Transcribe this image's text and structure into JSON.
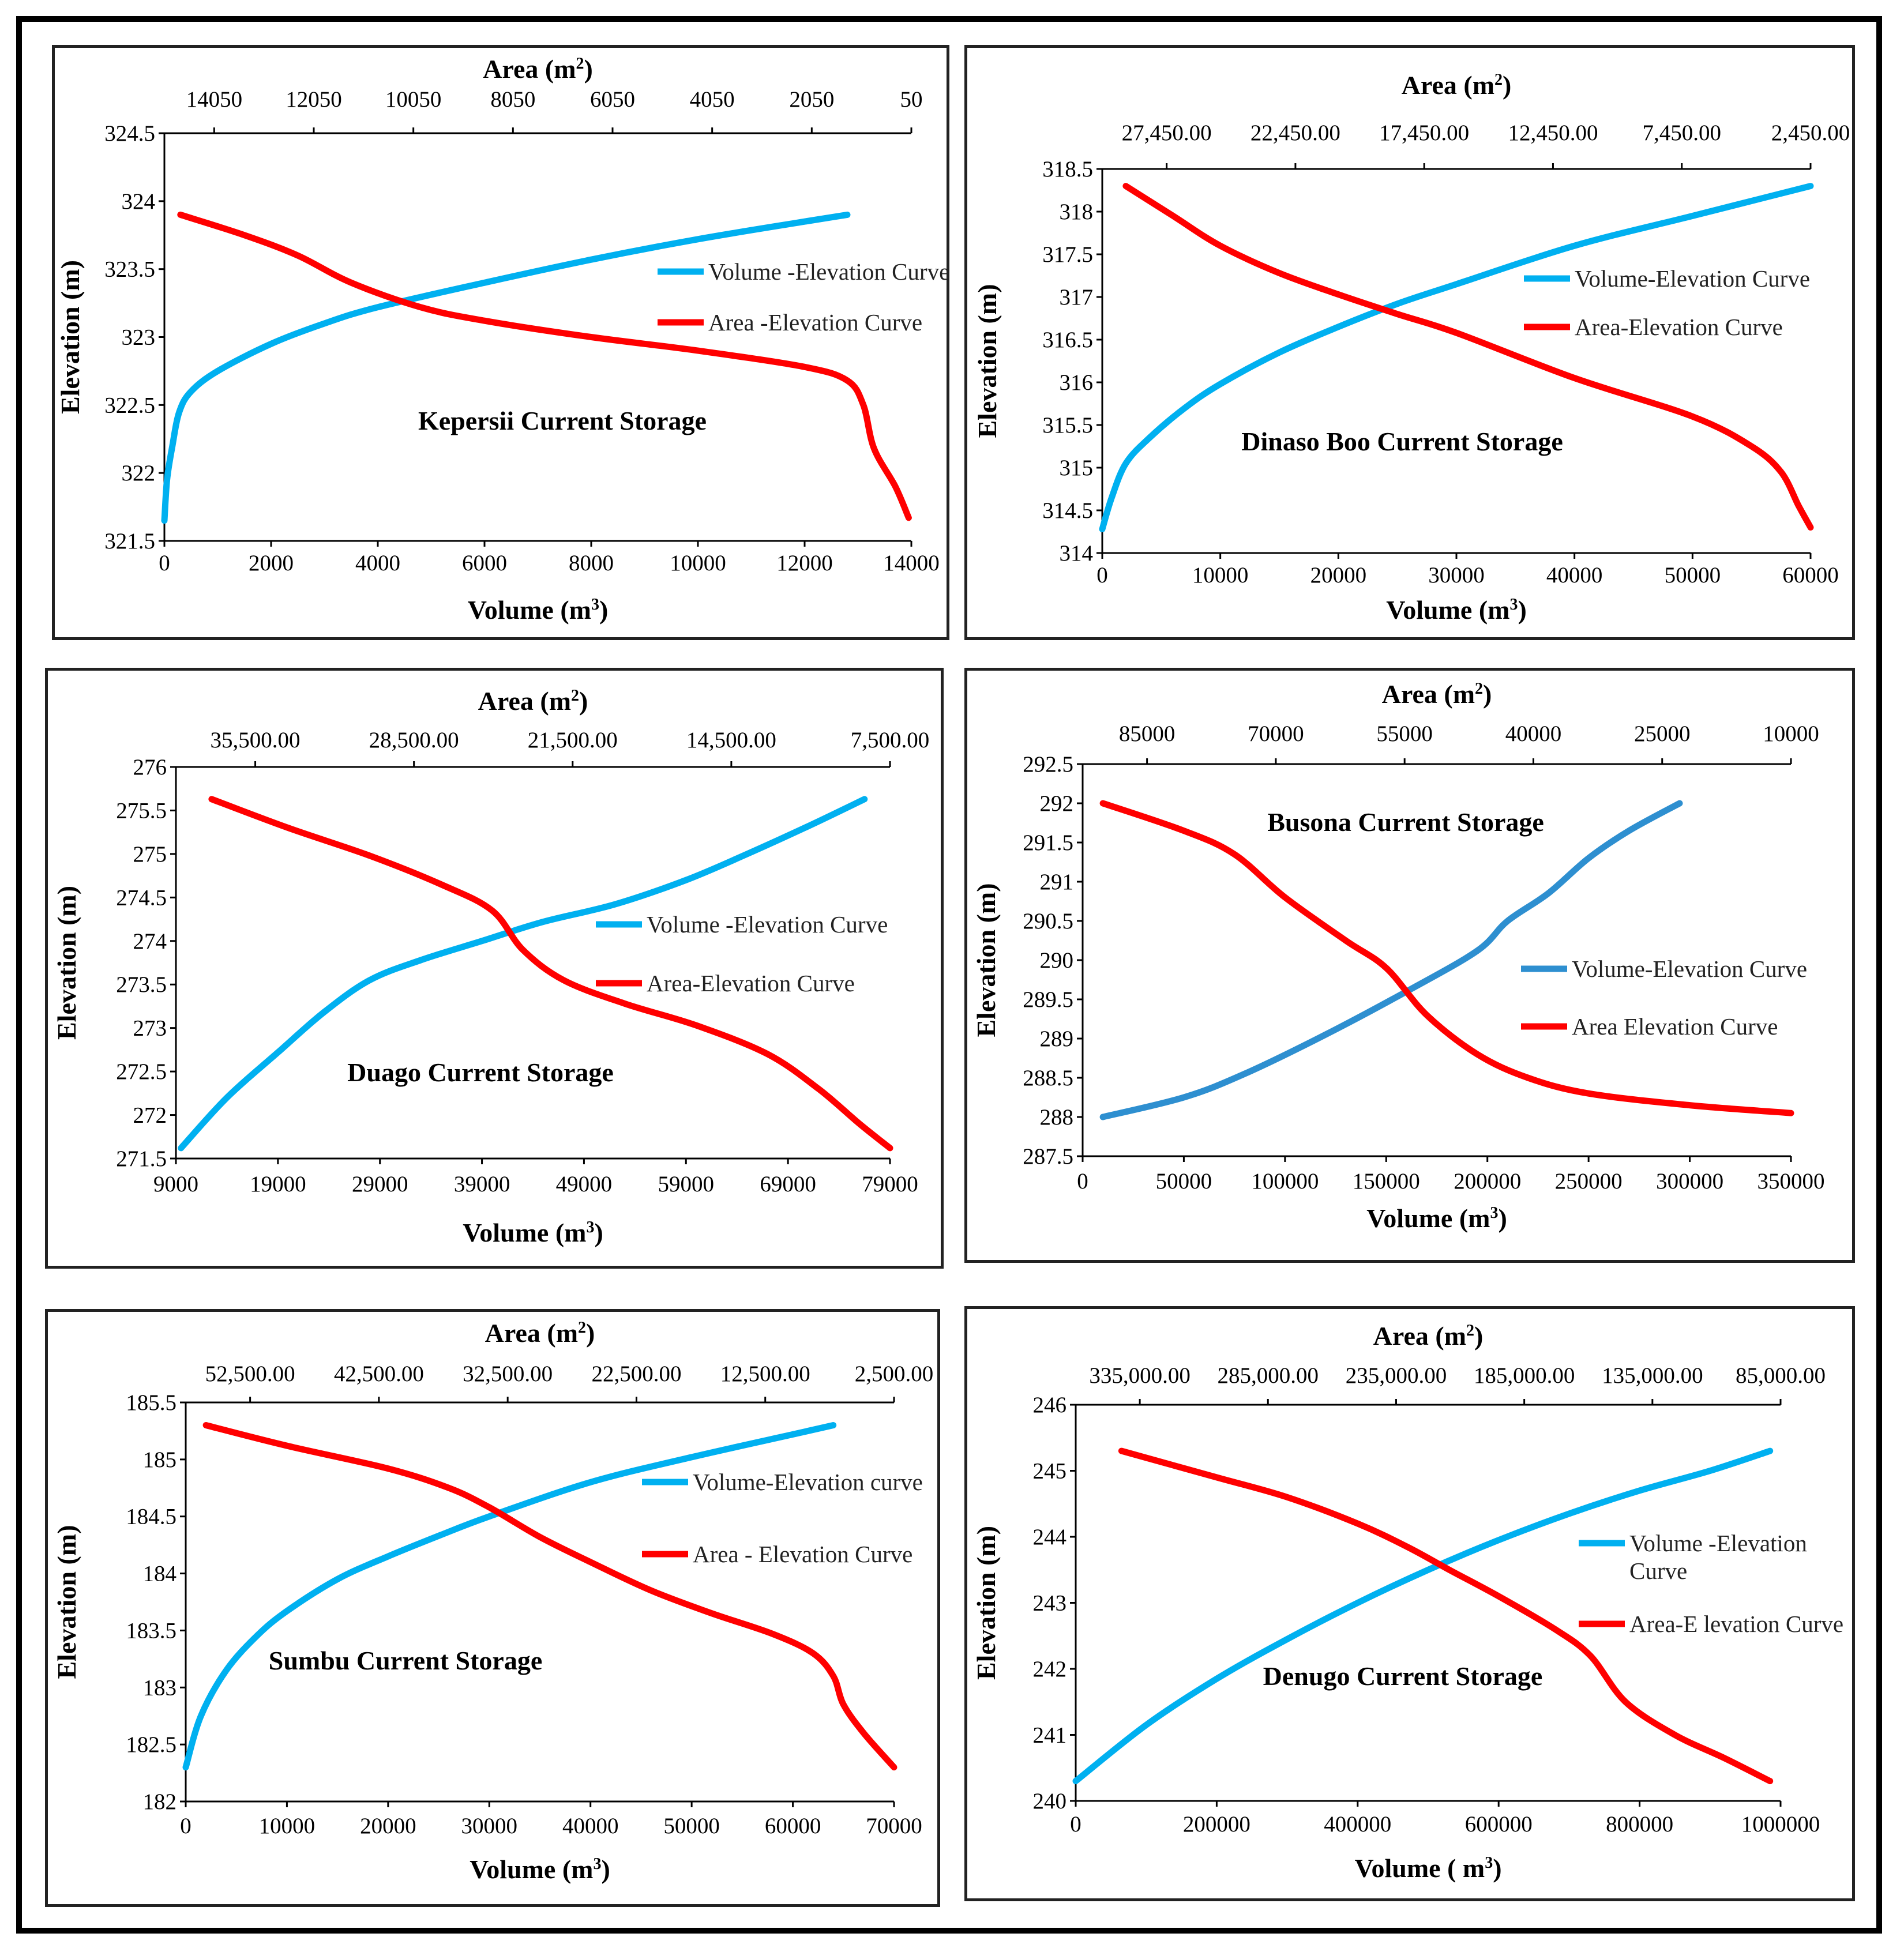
{
  "chart_data": [
    {
      "type": "line",
      "title": "Kepersii Current Storage",
      "xlabel": "Volume (m",
      "x2label": "Area (m",
      "ylabel": "Elevation (m)",
      "xlim": [
        0,
        14000
      ],
      "ylim": [
        321.5,
        324.5
      ],
      "xticks": [
        "0",
        "2000",
        "4000",
        "6000",
        "8000",
        "10000",
        "12000",
        "14000"
      ],
      "x2ticks": [
        "14050",
        "12050",
        "10050",
        "8050",
        "6050",
        "4050",
        "2050",
        "50"
      ],
      "yticks": [
        "321.5",
        "322",
        "322.5",
        "323",
        "323.5",
        "324",
        "324.5"
      ],
      "legend": [
        "Volume -Elevation Curve",
        "Area -Elevation Curve"
      ],
      "series": [
        {
          "name": "Volume -Elevation Curve",
          "color": "#00b0f0",
          "x": [
            0,
            50,
            150,
            280,
            500,
            1000,
            2000,
            3000,
            4000,
            6000,
            8000,
            10000,
            12000,
            12800
          ],
          "y": [
            321.65,
            321.95,
            322.2,
            322.45,
            322.6,
            322.75,
            322.95,
            323.1,
            323.22,
            323.4,
            323.57,
            323.72,
            323.85,
            323.9
          ]
        },
        {
          "name": "Area -Elevation Curve",
          "color": "#ff0000",
          "x": [
            300,
            1500,
            2500,
            3500,
            4800,
            6000,
            8000,
            10000,
            12000,
            12800,
            13100,
            13300,
            13700,
            13950
          ],
          "y": [
            323.9,
            323.75,
            323.6,
            323.4,
            323.22,
            323.12,
            323.0,
            322.9,
            322.78,
            322.68,
            322.5,
            322.18,
            321.9,
            321.67
          ]
        }
      ]
    },
    {
      "type": "line",
      "title": "Dinaso Boo Current Storage",
      "xlabel": "Volume (m",
      "x2label": "Area (m",
      "ylabel": "Elevation (m)",
      "xlim": [
        0,
        60000
      ],
      "ylim": [
        314,
        318.5
      ],
      "xticks": [
        "0",
        "10000",
        "20000",
        "30000",
        "40000",
        "50000",
        "60000"
      ],
      "x2ticks": [
        "27,450.00",
        "22,450.00",
        "17,450.00",
        "12,450.00",
        "7,450.00",
        "2,450.00"
      ],
      "yticks": [
        "314",
        "314.5",
        "315",
        "315.5",
        "316",
        "316.5",
        "317",
        "317.5",
        "318",
        "318.5"
      ],
      "legend": [
        "Volume-Elevation Curve",
        "Area-Elevation Curve"
      ],
      "series": [
        {
          "name": "Volume-Elevation Curve",
          "color": "#00b0f0",
          "x": [
            0,
            800,
            2000,
            4000,
            7000,
            10000,
            15000,
            20000,
            25000,
            30000,
            40000,
            50000,
            60000
          ],
          "y": [
            314.28,
            314.65,
            315.05,
            315.35,
            315.7,
            315.98,
            316.35,
            316.65,
            316.92,
            317.15,
            317.6,
            317.95,
            318.3
          ]
        },
        {
          "name": "Area-Elevation Curve",
          "color": "#ff0000",
          "x": [
            2000,
            6000,
            10000,
            15000,
            20000,
            25000,
            30000,
            40000,
            50000,
            55000,
            57500,
            59000,
            60000
          ],
          "y": [
            318.3,
            317.95,
            317.6,
            317.28,
            317.03,
            316.8,
            316.58,
            316.05,
            315.6,
            315.25,
            314.95,
            314.55,
            314.3
          ]
        }
      ]
    },
    {
      "type": "line",
      "title": "Duago Current Storage",
      "xlabel": "Volume (m",
      "x2label": "Area (m",
      "ylabel": "Elevation (m)",
      "xlim": [
        9000,
        79000
      ],
      "ylim": [
        271.5,
        276
      ],
      "xticks": [
        "9000",
        "19000",
        "29000",
        "39000",
        "49000",
        "59000",
        "69000",
        "79000"
      ],
      "x2ticks": [
        "35,500.00",
        "28,500.00",
        "21,500.00",
        "14,500.00",
        "7,500.00"
      ],
      "yticks": [
        "271.5",
        "272",
        "272.5",
        "273",
        "273.5",
        "274",
        "274.5",
        "275",
        "275.5",
        "276"
      ],
      "legend": [
        "Volume -Elevation Curve",
        "Area-Elevation Curve"
      ],
      "series": [
        {
          "name": "Volume -Elevation Curve",
          "color": "#00b0f0",
          "x": [
            9500,
            14000,
            19000,
            23500,
            28000,
            33000,
            39000,
            45000,
            52000,
            59000,
            65000,
            71000,
            76500
          ],
          "y": [
            271.62,
            272.2,
            272.72,
            273.18,
            273.55,
            273.78,
            274.0,
            274.22,
            274.42,
            274.7,
            275.0,
            275.32,
            275.63
          ]
        },
        {
          "name": "Area-Elevation Curve",
          "color": "#ff0000",
          "x": [
            12500,
            20000,
            28000,
            35000,
            40000,
            43000,
            47000,
            53000,
            60000,
            67000,
            72000,
            76000,
            79000
          ],
          "y": [
            275.63,
            275.3,
            274.98,
            274.65,
            274.35,
            273.9,
            273.55,
            273.28,
            273.03,
            272.7,
            272.3,
            271.9,
            271.62
          ]
        }
      ]
    },
    {
      "type": "line",
      "title": "Busona Current Storage",
      "xlabel": "Volume (m",
      "x2label": "Area (m",
      "ylabel": "Elevation (m)",
      "xlim": [
        0,
        350000
      ],
      "ylim": [
        287.5,
        292.5
      ],
      "xticks": [
        "0",
        "50000",
        "100000",
        "150000",
        "200000",
        "250000",
        "300000",
        "350000"
      ],
      "x2ticks": [
        "85000",
        "70000",
        "55000",
        "40000",
        "25000",
        "10000"
      ],
      "yticks": [
        "287.5",
        "288",
        "288.5",
        "289",
        "289.5",
        "290",
        "290.5",
        "291",
        "291.5",
        "292",
        "292.5"
      ],
      "legend": [
        "Volume-Elevation Curve",
        "Area Elevation Curve"
      ],
      "series": [
        {
          "name": "Volume-Elevation Curve",
          "color": "#2e8fd0",
          "x": [
            10000,
            50000,
            80000,
            120000,
            160000,
            195000,
            210000,
            230000,
            250000,
            270000,
            295000
          ],
          "y": [
            288.0,
            288.25,
            288.55,
            289.05,
            289.6,
            290.12,
            290.5,
            290.85,
            291.3,
            291.65,
            292.0
          ]
        },
        {
          "name": "Area Elevation Curve",
          "color": "#ff0000",
          "x": [
            10000,
            50000,
            75000,
            100000,
            130000,
            150000,
            170000,
            195000,
            220000,
            250000,
            300000,
            350000
          ],
          "y": [
            292.0,
            291.65,
            291.35,
            290.8,
            290.25,
            289.9,
            289.3,
            288.8,
            288.5,
            288.3,
            288.15,
            288.05
          ]
        }
      ]
    },
    {
      "type": "line",
      "title": "Sumbu Current Storage",
      "xlabel": "Volume (m",
      "x2label": "Area (m",
      "ylabel": "Elevation  (m)",
      "xlim": [
        0,
        70000
      ],
      "ylim": [
        182,
        185.5
      ],
      "xticks": [
        "0",
        "10000",
        "20000",
        "30000",
        "40000",
        "50000",
        "60000",
        "70000"
      ],
      "x2ticks": [
        "52,500.00",
        "42,500.00",
        "32,500.00",
        "22,500.00",
        "12,500.00",
        "2,500.00"
      ],
      "yticks": [
        "182",
        "182.5",
        "183",
        "183.5",
        "184",
        "184.5",
        "185",
        "185.5"
      ],
      "legend": [
        "Volume-Elevation curve",
        "Area - Elevation Curve"
      ],
      "series": [
        {
          "name": "Volume-Elevation curve",
          "color": "#00b0f0",
          "x": [
            0,
            1500,
            4000,
            7000,
            10000,
            15000,
            20000,
            25000,
            30000,
            40000,
            50000,
            60000,
            64000
          ],
          "y": [
            182.3,
            182.75,
            183.15,
            183.45,
            183.67,
            183.95,
            184.15,
            184.33,
            184.5,
            184.8,
            185.02,
            185.22,
            185.3
          ]
        },
        {
          "name": "Area - Elevation Curve",
          "color": "#ff0000",
          "x": [
            2000,
            10000,
            20000,
            26000,
            30000,
            35000,
            40000,
            46000,
            52000,
            58000,
            62000,
            64000,
            65000,
            67000,
            70000
          ],
          "y": [
            185.3,
            185.12,
            184.92,
            184.75,
            184.58,
            184.32,
            184.1,
            183.85,
            183.65,
            183.47,
            183.3,
            183.1,
            182.85,
            182.6,
            182.3
          ]
        }
      ]
    },
    {
      "type": "line",
      "title": "Denugo Current Storage",
      "xlabel": "Volume ( m",
      "x2label": "Area (m",
      "ylabel": "Elevation (m)",
      "xlim": [
        0,
        1000000
      ],
      "ylim": [
        240,
        246
      ],
      "xticks": [
        "0",
        "200000",
        "400000",
        "600000",
        "800000",
        "1000000"
      ],
      "x2ticks": [
        "335,000.00",
        "285,000.00",
        "235,000.00",
        "185,000.00",
        "135,000.00",
        "85,000.00"
      ],
      "yticks": [
        "240",
        "241",
        "242",
        "243",
        "244",
        "245",
        "246"
      ],
      "legend": [
        "Volume -Elevation",
        "Curve",
        "Area-E levation Curve"
      ],
      "series": [
        {
          "name": "Volume -Elevation Curve",
          "color": "#00b0f0",
          "x": [
            0,
            100000,
            200000,
            300000,
            400000,
            500000,
            600000,
            700000,
            800000,
            900000,
            985000
          ],
          "y": [
            240.3,
            241.15,
            241.85,
            242.45,
            243.0,
            243.5,
            243.95,
            244.35,
            244.7,
            245.0,
            245.3
          ]
        },
        {
          "name": "Area-E levation Curve",
          "color": "#ff0000",
          "x": [
            65000,
            200000,
            300000,
            400000,
            470000,
            530000,
            600000,
            680000,
            730000,
            780000,
            850000,
            920000,
            985000
          ],
          "y": [
            245.3,
            244.9,
            244.6,
            244.2,
            243.85,
            243.5,
            243.1,
            242.6,
            242.2,
            241.5,
            241.0,
            240.65,
            240.3
          ]
        }
      ]
    }
  ]
}
